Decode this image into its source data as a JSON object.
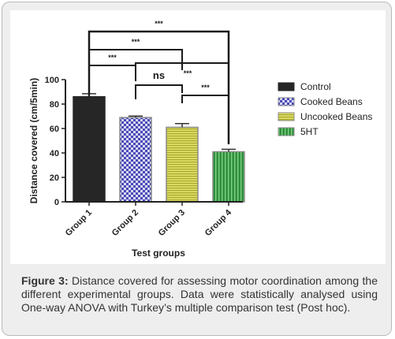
{
  "colors": {
    "control": "#262626",
    "cooked": "#4a4ab8",
    "uncooked": "#c8c83a",
    "serotonin": "#2f8f3a",
    "axis": "#222222"
  },
  "chart_data": {
    "type": "bar",
    "xlabel": "Test groups",
    "ylabel": "Distance covered (cm/5min)",
    "ylim": [
      0,
      100
    ],
    "yticks": [
      "0",
      "20",
      "40",
      "60",
      "80",
      "100"
    ],
    "categories": [
      "Group 1",
      "Group 2",
      "Group 3",
      "Group 4"
    ],
    "values": [
      86,
      69,
      61,
      41
    ],
    "errors": [
      2.5,
      1.2,
      3.0,
      2.0
    ],
    "legend": [
      "Control",
      "Cooked Beans",
      "Uncooked Beans",
      "5HT"
    ],
    "legend_position": "right",
    "grid": false,
    "annotations": [
      {
        "from": "Group 1",
        "to": "Group 4",
        "label": "***"
      },
      {
        "from": "Group 1",
        "to": "Group 3",
        "label": "***"
      },
      {
        "from": "Group 1",
        "to": "Group 2",
        "label": "***"
      },
      {
        "from": "Group 2",
        "to": "Group 4",
        "label": "***"
      },
      {
        "from": "Group 2",
        "to": "Group 3",
        "label": "ns"
      },
      {
        "from": "Group 3",
        "to": "Group 4",
        "label": "***"
      }
    ]
  },
  "caption": {
    "label": "Figure 3:",
    "text": " Distance covered for assessing motor coordination among the different experimental groups. Data were statistically analysed using One-way ANOVA with Turkey’s multiple comparison test (Post hoc)."
  }
}
